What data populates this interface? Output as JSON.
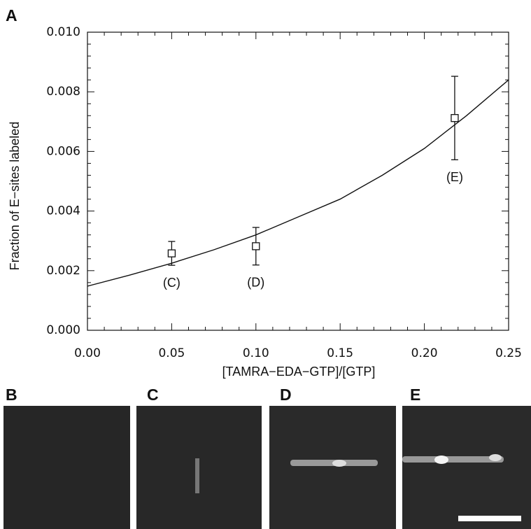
{
  "panel_labels": [
    "A",
    "B",
    "C",
    "D",
    "E"
  ],
  "chart_data": {
    "type": "scatter",
    "xlabel": "[TAMRA−EDA−GTP]/[GTP]",
    "ylabel": "Fraction of E−sites labeled",
    "xlim": [
      0,
      0.25
    ],
    "ylim": [
      0,
      0.01
    ],
    "xticks": [
      {
        "value": 0,
        "label": "0.00"
      },
      {
        "value": 0.05,
        "label": "0.05"
      },
      {
        "value": 0.1,
        "label": "0.10"
      },
      {
        "value": 0.15,
        "label": "0.15"
      },
      {
        "value": 0.2,
        "label": "0.20"
      },
      {
        "value": 0.25,
        "label": "0.25"
      }
    ],
    "yticks": [
      {
        "value": 0,
        "label": "0.000"
      },
      {
        "value": 0.002,
        "label": "0.002"
      },
      {
        "value": 0.004,
        "label": "0.004"
      },
      {
        "value": 0.006,
        "label": "0.006"
      },
      {
        "value": 0.008,
        "label": "0.008"
      },
      {
        "value": 0.01,
        "label": "0.010"
      }
    ],
    "color": "#111111",
    "points": {
      "x": [
        0.05,
        0.1,
        0.218
      ],
      "values": [
        0.00258,
        0.00282,
        0.00712
      ],
      "errors": [
        0.0004,
        0.00063,
        0.0014
      ],
      "labels": [
        "(C)",
        "(D)",
        "(E)"
      ]
    },
    "fit": {
      "x": [
        0,
        0.025,
        0.05,
        0.075,
        0.1,
        0.125,
        0.15,
        0.175,
        0.2,
        0.225,
        0.25
      ],
      "values": [
        0.00148,
        0.00185,
        0.00225,
        0.0027,
        0.0032,
        0.0038,
        0.0044,
        0.0052,
        0.0061,
        0.0072,
        0.0084
      ]
    }
  }
}
